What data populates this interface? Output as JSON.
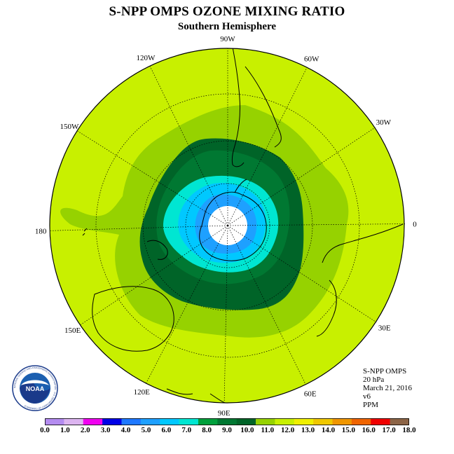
{
  "title": "S-NPP OMPS OZONE MIXING RATIO",
  "subtitle": "Southern Hemisphere",
  "longitude_labels": [
    "90W",
    "60W",
    "30W",
    "0",
    "30E",
    "60E",
    "90E",
    "120E",
    "150E",
    "180",
    "150W",
    "120W"
  ],
  "info": {
    "instrument": "S-NPP OMPS",
    "level": "20 hPa",
    "date": "March 21, 2016",
    "version": "v6",
    "units": "PPM"
  },
  "logo": {
    "text": "NOAA",
    "ring_text": "NATIONAL OCEANIC AND ATMOSPHERIC ADMINISTRATION · U.S. DEPARTMENT OF COMMERCE"
  },
  "colorbar": {
    "ticks": [
      "0.0",
      "1.0",
      "2.0",
      "3.0",
      "4.0",
      "5.0",
      "6.0",
      "7.0",
      "8.0",
      "9.0",
      "10.0",
      "11.0",
      "12.0",
      "13.0",
      "14.0",
      "15.0",
      "16.0",
      "17.0",
      "18.0"
    ],
    "colors": [
      "#b48cf0",
      "#dcb4f0",
      "#f000f0",
      "#0000e6",
      "#1e78ff",
      "#1ea0ff",
      "#00c8ff",
      "#00e6d2",
      "#00a03c",
      "#007832",
      "#006428",
      "#96d200",
      "#c8f000",
      "#f0f000",
      "#f0c800",
      "#f09600",
      "#f06400",
      "#f00000",
      "#8c6446"
    ]
  },
  "map_colors": {
    "background": "#c8f000",
    "ring_11": "#96d200",
    "ring_10": "#006428",
    "ring_9": "#007832",
    "ring_8": "#00e6d2",
    "ring_7": "#00c8ff",
    "ring_6": "#1ea0ff",
    "pole": "#ffffff"
  }
}
